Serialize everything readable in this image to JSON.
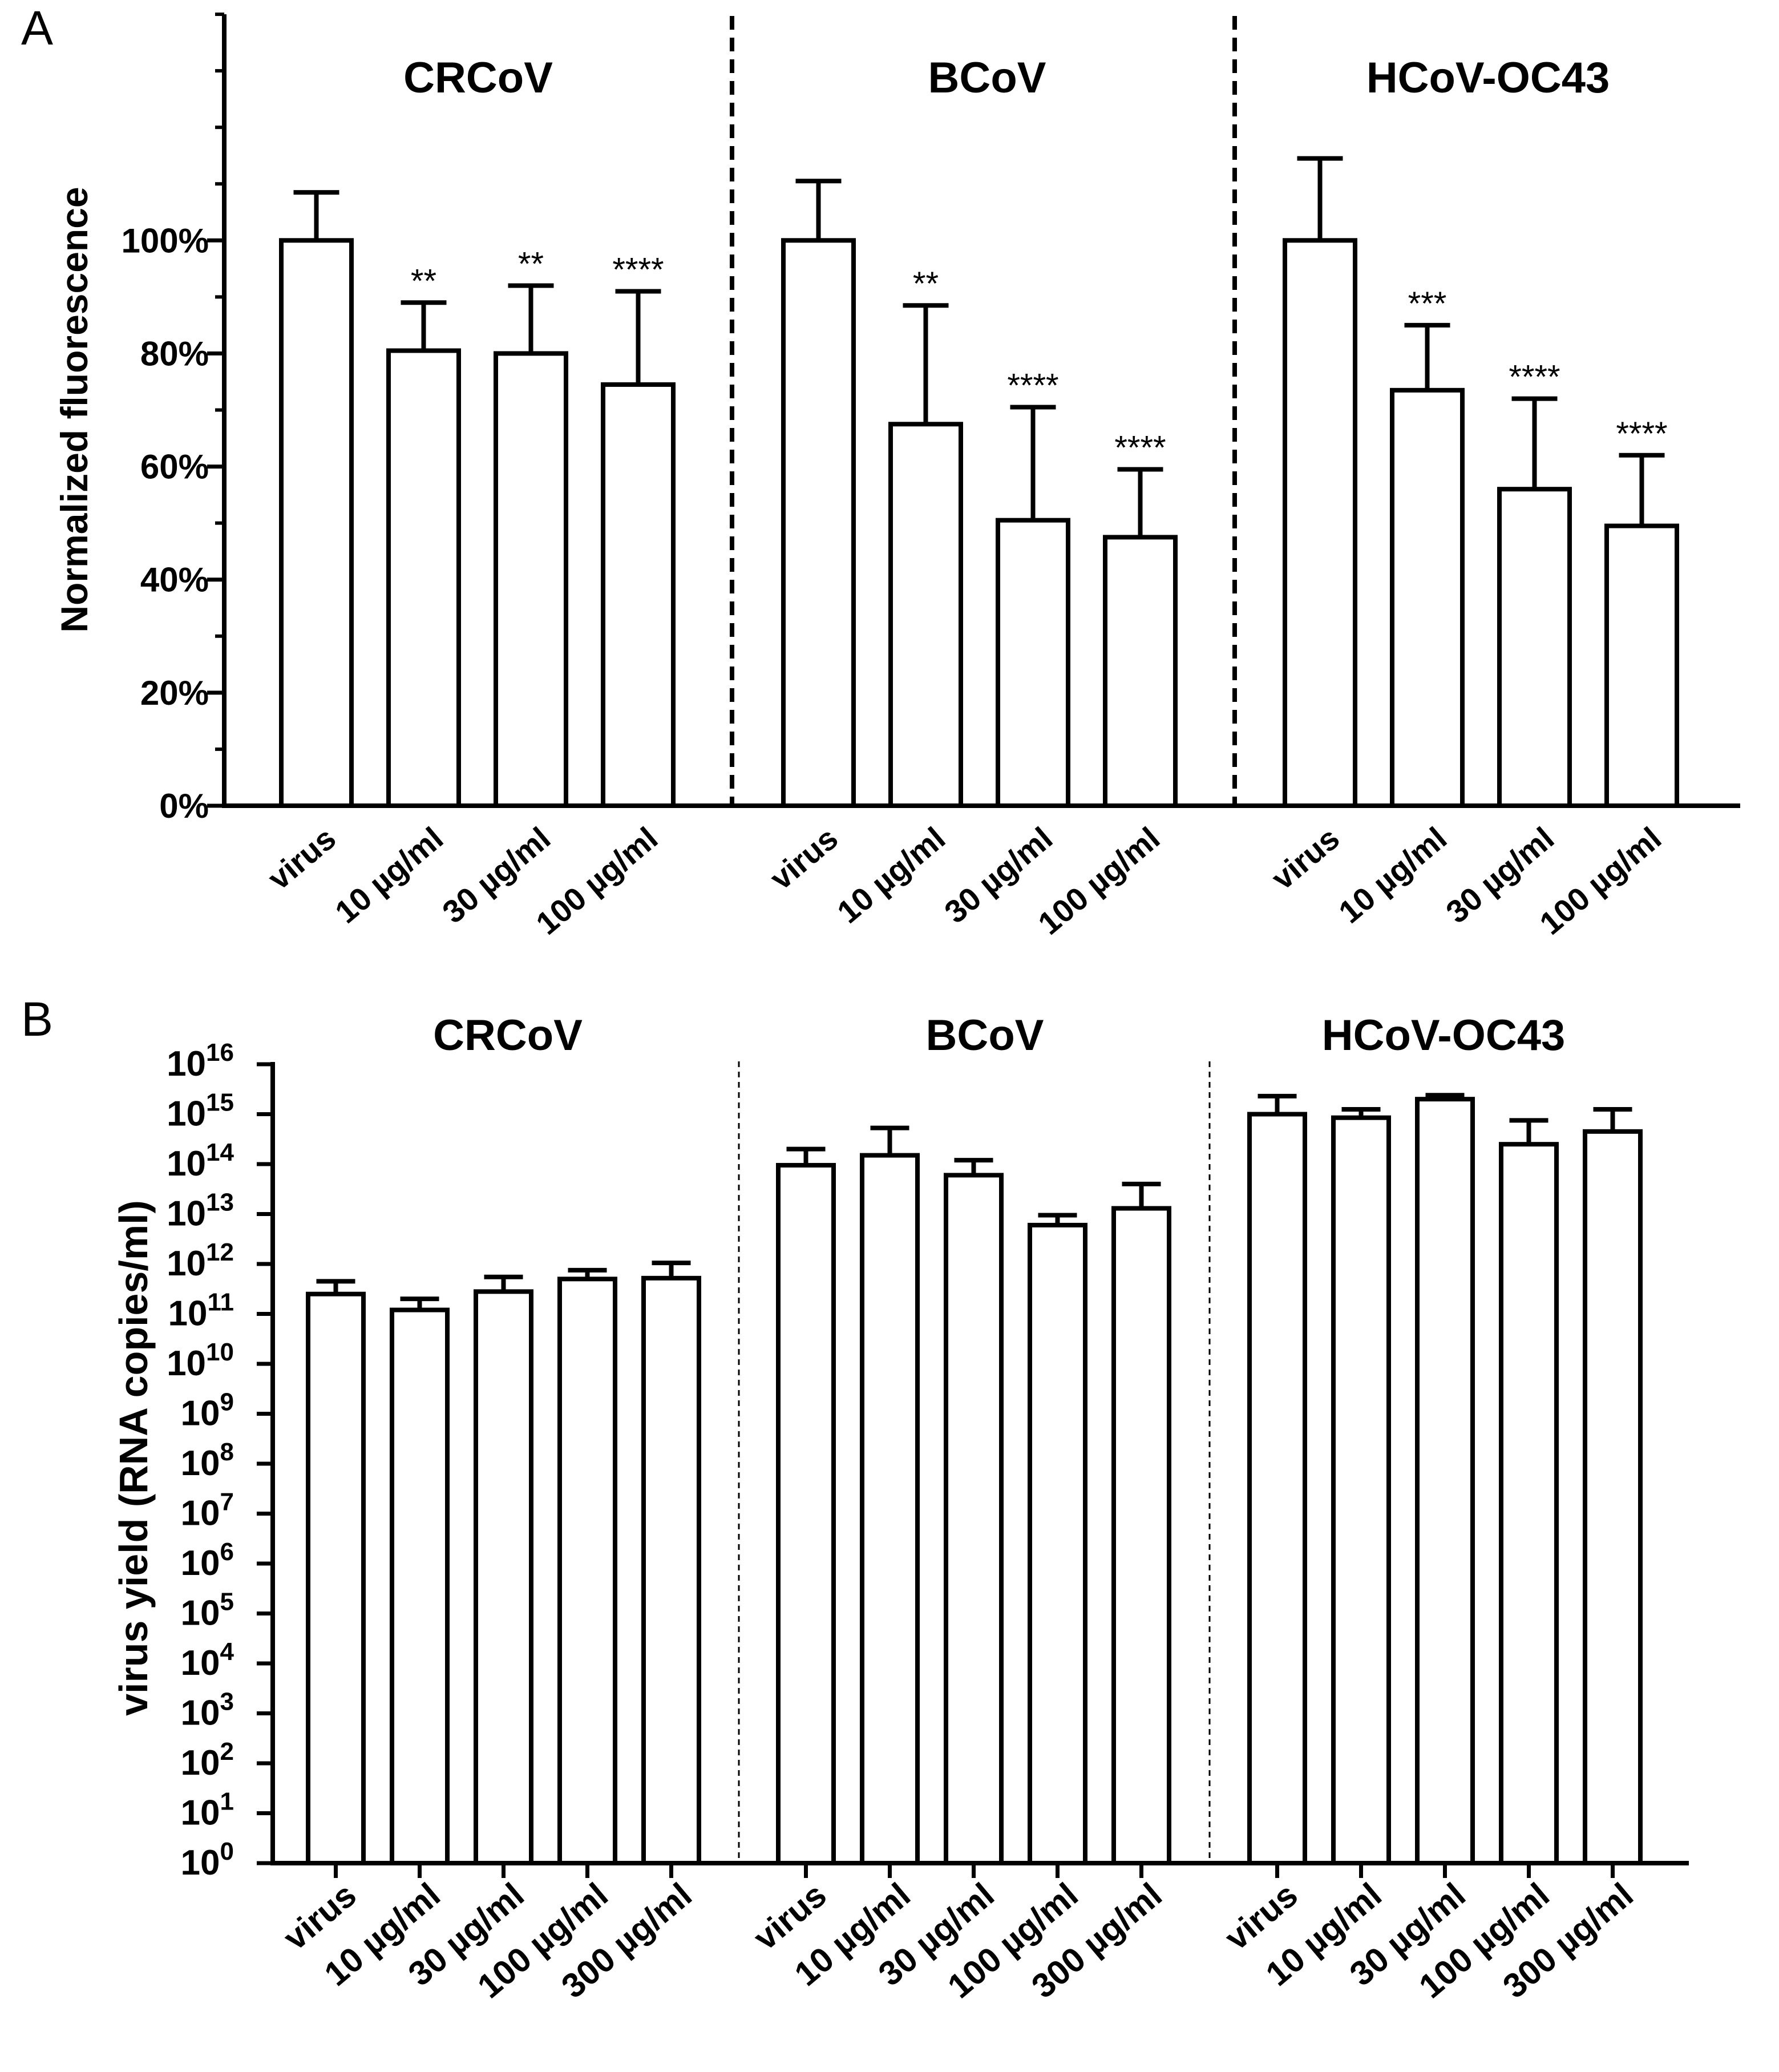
{
  "colors": {
    "ink": "#000000",
    "bar_fill": "#ffffff",
    "background": "#ffffff"
  },
  "chart_data": [
    {
      "panel_label": "A",
      "type": "bar",
      "ylabel": "Normalized fluorescence",
      "ylim": [
        0,
        140
      ],
      "yticks": [
        0,
        20,
        40,
        60,
        80,
        100
      ],
      "ytick_labels": [
        "0%",
        "20%",
        "40%",
        "60%",
        "80%",
        "100%"
      ],
      "y_minor_tick_step": 10,
      "separator_style": "dashed-thick",
      "groups": [
        {
          "title": "CRCoV",
          "categories": [
            "virus",
            "10 µg/ml",
            "30 µg/ml",
            "100 µg/ml"
          ],
          "values": [
            100,
            80.5,
            80,
            74.5
          ],
          "errors": [
            8.5,
            8.5,
            12,
            16.5
          ],
          "significance": [
            "",
            "**",
            "**",
            "****"
          ]
        },
        {
          "title": "BCoV",
          "categories": [
            "virus",
            "10 µg/ml",
            "30 µg/ml",
            "100 µg/ml"
          ],
          "values": [
            100,
            67.5,
            50.5,
            47.5
          ],
          "errors": [
            10.5,
            21,
            20,
            12
          ],
          "significance": [
            "",
            "**",
            "****",
            "****"
          ]
        },
        {
          "title": "HCoV-OC43",
          "categories": [
            "virus",
            "10 µg/ml",
            "30 µg/ml",
            "100 µg/ml"
          ],
          "values": [
            100,
            73.5,
            56,
            49.5
          ],
          "errors": [
            14.5,
            11.5,
            16,
            12.5
          ],
          "significance": [
            "",
            "***",
            "****",
            "****"
          ]
        }
      ]
    },
    {
      "panel_label": "B",
      "type": "bar",
      "scale": "log10",
      "ylabel": "virus yield (RNA copies/ml)",
      "ylim_exponent": [
        0,
        16
      ],
      "ytick_base": "10",
      "ytick_exponents": [
        "0",
        "1",
        "2",
        "3",
        "4",
        "5",
        "6",
        "7",
        "8",
        "9",
        "10",
        "11",
        "12",
        "13",
        "14",
        "15",
        "16"
      ],
      "separator_style": "dashed-thin",
      "groups": [
        {
          "title": "CRCoV",
          "categories": [
            "virus",
            "10 µg/ml",
            "30 µg/ml",
            "100 µg/ml",
            "300 µg/ml"
          ],
          "values": [
            250000000000.0,
            120000000000.0,
            280000000000.0,
            500000000000.0,
            520000000000.0
          ],
          "error_tops": [
            450000000000.0,
            200000000000.0,
            550000000000.0,
            750000000000.0,
            1050000000000.0
          ]
        },
        {
          "title": "BCoV",
          "categories": [
            "virus",
            "10 µg/ml",
            "30 µg/ml",
            "100 µg/ml",
            "300 µg/ml"
          ],
          "values": [
            95000000000000.0,
            150000000000000.0,
            60000000000000.0,
            6000000000000.0,
            13000000000000.0
          ],
          "error_tops": [
            200000000000000.0,
            530000000000000.0,
            120000000000000.0,
            9500000000000.0,
            40000000000000.0
          ]
        },
        {
          "title": "HCoV-OC43",
          "categories": [
            "virus",
            "10 µg/ml",
            "30 µg/ml",
            "100 µg/ml",
            "300 µg/ml"
          ],
          "values": [
            1000000000000000.0,
            850000000000000.0,
            2000000000000000.0,
            250000000000000.0,
            450000000000000.0
          ],
          "error_tops": [
            2300000000000000.0,
            1250000000000000.0,
            2400000000000000.0,
            750000000000000.0,
            1250000000000000.0
          ]
        }
      ]
    }
  ]
}
